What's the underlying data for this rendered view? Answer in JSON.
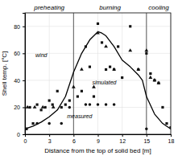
{
  "chart_data": {
    "type": "line",
    "xlabel": "Distance from the top of solid bed [m]",
    "ylabel": "Shell temp. [°C]",
    "xlim": [
      0,
      18
    ],
    "ylim": [
      0,
      90
    ],
    "xticks": [
      0,
      3,
      6,
      9,
      12,
      15,
      18
    ],
    "yticks": [
      0,
      20,
      40,
      60,
      80
    ],
    "grid": true,
    "zones": {
      "boundaries": [
        6,
        15
      ],
      "labels": [
        "preheating",
        "burning",
        "cooling"
      ]
    },
    "series": [
      {
        "type": "line",
        "color": "#000000",
        "x": [
          0,
          0.5,
          1,
          2,
          3,
          4,
          5,
          6,
          7,
          8,
          9,
          9.5,
          10,
          11,
          12,
          13,
          14,
          14.5,
          15,
          16,
          17,
          17.5,
          18
        ],
        "values": [
          4,
          5,
          6,
          9,
          13,
          18,
          28,
          46,
          60,
          70,
          76,
          75,
          73,
          65,
          55,
          50,
          44,
          40,
          28,
          15,
          8,
          6,
          4
        ]
      },
      {
        "type": "scatter",
        "marker": "square",
        "color": "#111111",
        "x": [
          0.2,
          0.6,
          1.0,
          1.5,
          2.0,
          2.5,
          3.0,
          3.4,
          4.0,
          4.5,
          5.0,
          5.5,
          6.5,
          7.0,
          7.5,
          8.0,
          8.5,
          9.0,
          9.5,
          10.0,
          10.5,
          11.0,
          11.5,
          12.0,
          13.0,
          14.0,
          15.0,
          15.5,
          16.0,
          16.5,
          17.0,
          17.5,
          18.0
        ],
        "values": [
          4,
          20,
          8,
          22,
          18,
          20,
          25,
          22,
          32,
          20,
          22,
          25,
          28,
          32,
          65,
          50,
          28,
          82,
          68,
          48,
          50,
          48,
          65,
          42,
          80,
          48,
          60,
          45,
          40,
          38,
          20,
          8,
          5
        ]
      },
      {
        "type": "scatter",
        "marker": "triangle",
        "color": "#111111",
        "x": [
          0.3,
          1.2,
          2.2,
          3.5,
          6.0,
          7.0,
          8.5,
          9.0,
          10.0,
          11.0,
          13.0,
          14.0,
          15.0,
          15.5,
          16.0,
          16.5
        ],
        "values": [
          20,
          20,
          20,
          20,
          35,
          48,
          35,
          75,
          65,
          48,
          62,
          48,
          62,
          42,
          40,
          38
        ]
      },
      {
        "type": "scatter",
        "marker": "circle",
        "color": "#111111",
        "x": [
          0.1,
          1.5,
          3.0,
          4.5,
          5.5,
          7.5,
          8.0,
          9.0,
          10.0,
          11.0,
          15.0
        ],
        "values": [
          4,
          8,
          8,
          8,
          20,
          22,
          22,
          22,
          22,
          22,
          4
        ]
      }
    ],
    "annotations": [
      {
        "text": "wind",
        "x": 1.3,
        "y": 57
      },
      {
        "text": "simulated",
        "x": 8.3,
        "y": 37
      },
      {
        "text": "measured",
        "x": 5.2,
        "y": 12
      }
    ]
  }
}
